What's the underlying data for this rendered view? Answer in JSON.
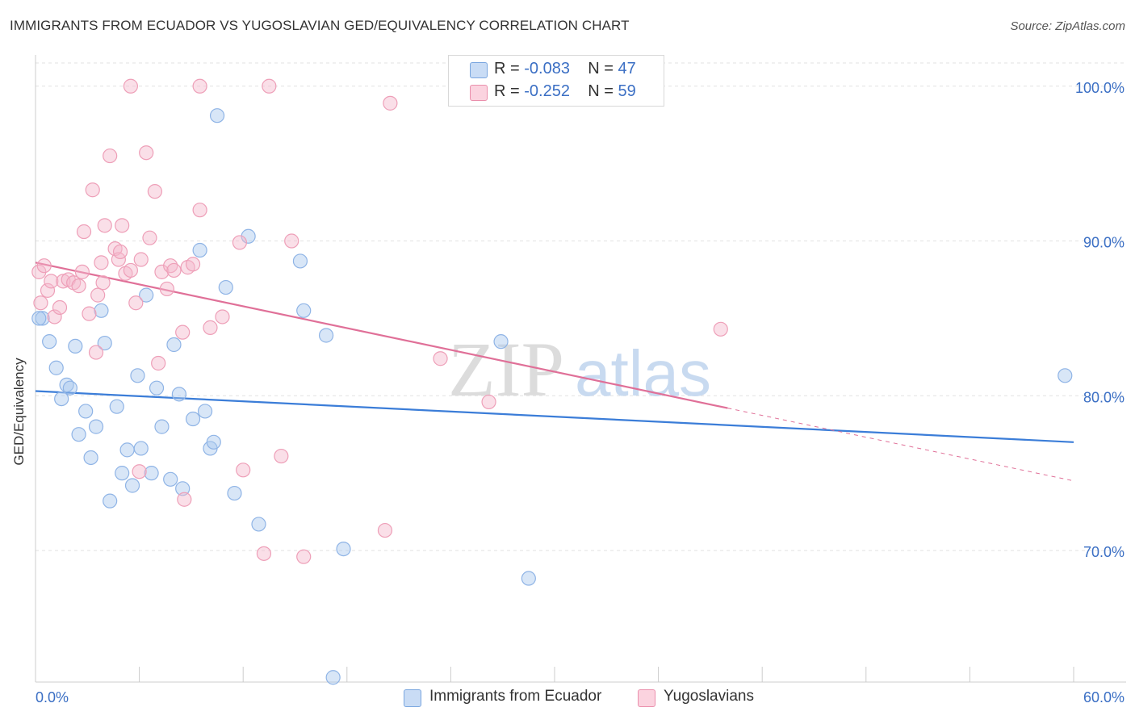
{
  "header": {
    "title": "IMMIGRANTS FROM ECUADOR VS YUGOSLAVIAN GED/EQUIVALENCY CORRELATION CHART",
    "source": "Source: ZipAtlas.com"
  },
  "watermark": {
    "big": "ZIP",
    "small": "atlas"
  },
  "legend": {
    "rows": [
      {
        "r_label": "R =",
        "r_value": "-0.083",
        "n_label": "N =",
        "n_value": "47",
        "color": "#a8c8ee"
      },
      {
        "r_label": "R =",
        "r_value": "-0.252",
        "n_label": "N =",
        "n_value": "59",
        "color": "#f5b8cb"
      }
    ]
  },
  "bottom_legend": [
    {
      "label": "Immigrants from Ecuador",
      "color": "#a8c8ee"
    },
    {
      "label": "Yugoslavians",
      "color": "#f5b8cb"
    }
  ],
  "chart_data": {
    "type": "scatter",
    "ylabel": "GED/Equivalency",
    "xlim": [
      0,
      60
    ],
    "ylim": [
      61.5,
      101.5
    ],
    "x_tick_labels": [
      "0.0%",
      "60.0%"
    ],
    "y_ticks": [
      70,
      80,
      90,
      100
    ],
    "y_tick_labels": [
      "70.0%",
      "80.0%",
      "90.0%",
      "100.0%"
    ],
    "grid": true,
    "colors": {
      "blue": "#3b7dd8",
      "pink": "#e07098",
      "blue_fill": "#a8c8ee",
      "pink_fill": "#f5b8cb",
      "tick_text": "#3b6fc4"
    },
    "series": [
      {
        "name": "Immigrants from Ecuador",
        "color": "blue",
        "trend": {
          "x0": 0,
          "y0": 80.3,
          "x1": 60,
          "y1": 77.0
        },
        "points": [
          [
            0.4,
            85.0
          ],
          [
            0.8,
            83.5
          ],
          [
            1.2,
            81.8
          ],
          [
            1.5,
            79.8
          ],
          [
            1.8,
            80.7
          ],
          [
            2.0,
            80.5
          ],
          [
            2.3,
            83.2
          ],
          [
            2.5,
            77.5
          ],
          [
            2.9,
            79.0
          ],
          [
            3.2,
            76.0
          ],
          [
            3.5,
            78.0
          ],
          [
            3.8,
            85.5
          ],
          [
            4.0,
            83.4
          ],
          [
            4.3,
            73.2
          ],
          [
            4.7,
            79.3
          ],
          [
            5.0,
            75.0
          ],
          [
            5.3,
            76.5
          ],
          [
            5.6,
            74.2
          ],
          [
            5.9,
            81.3
          ],
          [
            6.1,
            76.6
          ],
          [
            6.4,
            86.5
          ],
          [
            6.7,
            75.0
          ],
          [
            7.0,
            80.5
          ],
          [
            7.3,
            78.0
          ],
          [
            7.8,
            74.6
          ],
          [
            8.0,
            83.3
          ],
          [
            8.3,
            80.1
          ],
          [
            8.5,
            74.0
          ],
          [
            9.1,
            78.5
          ],
          [
            9.5,
            89.4
          ],
          [
            9.8,
            79.0
          ],
          [
            10.1,
            76.6
          ],
          [
            10.3,
            77.0
          ],
          [
            10.5,
            98.1
          ],
          [
            11.0,
            87.0
          ],
          [
            11.5,
            73.7
          ],
          [
            12.3,
            90.3
          ],
          [
            12.9,
            71.7
          ],
          [
            15.3,
            88.7
          ],
          [
            15.5,
            85.5
          ],
          [
            16.8,
            83.9
          ],
          [
            17.2,
            61.8
          ],
          [
            17.8,
            70.1
          ],
          [
            26.9,
            83.5
          ],
          [
            28.5,
            68.2
          ],
          [
            59.5,
            81.3
          ],
          [
            0.2,
            85.0
          ]
        ]
      },
      {
        "name": "Yugoslavians",
        "color": "pink",
        "trend": {
          "x0": 0,
          "y0": 88.6,
          "x1": 40,
          "y1": 79.2,
          "dash_x1": 60,
          "dash_y1": 74.5
        },
        "points": [
          [
            0.2,
            88.0
          ],
          [
            0.5,
            88.4
          ],
          [
            0.7,
            86.8
          ],
          [
            0.9,
            87.4
          ],
          [
            1.1,
            85.1
          ],
          [
            1.4,
            85.7
          ],
          [
            1.6,
            87.4
          ],
          [
            1.9,
            87.5
          ],
          [
            2.2,
            87.3
          ],
          [
            2.5,
            87.1
          ],
          [
            2.7,
            88.0
          ],
          [
            2.8,
            90.6
          ],
          [
            3.1,
            85.3
          ],
          [
            3.3,
            93.3
          ],
          [
            3.5,
            82.8
          ],
          [
            3.8,
            88.6
          ],
          [
            3.9,
            87.3
          ],
          [
            4.0,
            91.0
          ],
          [
            4.3,
            95.5
          ],
          [
            4.6,
            89.5
          ],
          [
            4.8,
            88.8
          ],
          [
            5.0,
            91.0
          ],
          [
            5.2,
            87.9
          ],
          [
            5.5,
            88.1
          ],
          [
            5.8,
            86.0
          ],
          [
            5.5,
            100.0
          ],
          [
            6.1,
            88.8
          ],
          [
            6.4,
            95.7
          ],
          [
            6.6,
            90.2
          ],
          [
            6.9,
            93.2
          ],
          [
            7.1,
            82.1
          ],
          [
            7.3,
            88.0
          ],
          [
            7.6,
            86.9
          ],
          [
            7.8,
            88.4
          ],
          [
            8.0,
            88.1
          ],
          [
            8.5,
            84.1
          ],
          [
            8.8,
            88.3
          ],
          [
            9.1,
            88.5
          ],
          [
            9.5,
            92.0
          ],
          [
            9.5,
            100.0
          ],
          [
            10.1,
            84.4
          ],
          [
            10.8,
            85.1
          ],
          [
            11.8,
            89.9
          ],
          [
            12.0,
            75.2
          ],
          [
            13.2,
            69.8
          ],
          [
            13.5,
            100.0
          ],
          [
            14.2,
            76.1
          ],
          [
            14.8,
            90.0
          ],
          [
            15.5,
            69.6
          ],
          [
            20.2,
            71.3
          ],
          [
            20.5,
            98.9
          ],
          [
            23.4,
            82.4
          ],
          [
            26.2,
            79.6
          ],
          [
            39.6,
            84.3
          ],
          [
            8.6,
            73.3
          ],
          [
            6.0,
            75.1
          ],
          [
            4.9,
            89.3
          ],
          [
            3.6,
            86.5
          ],
          [
            0.3,
            86.0
          ]
        ]
      }
    ]
  }
}
